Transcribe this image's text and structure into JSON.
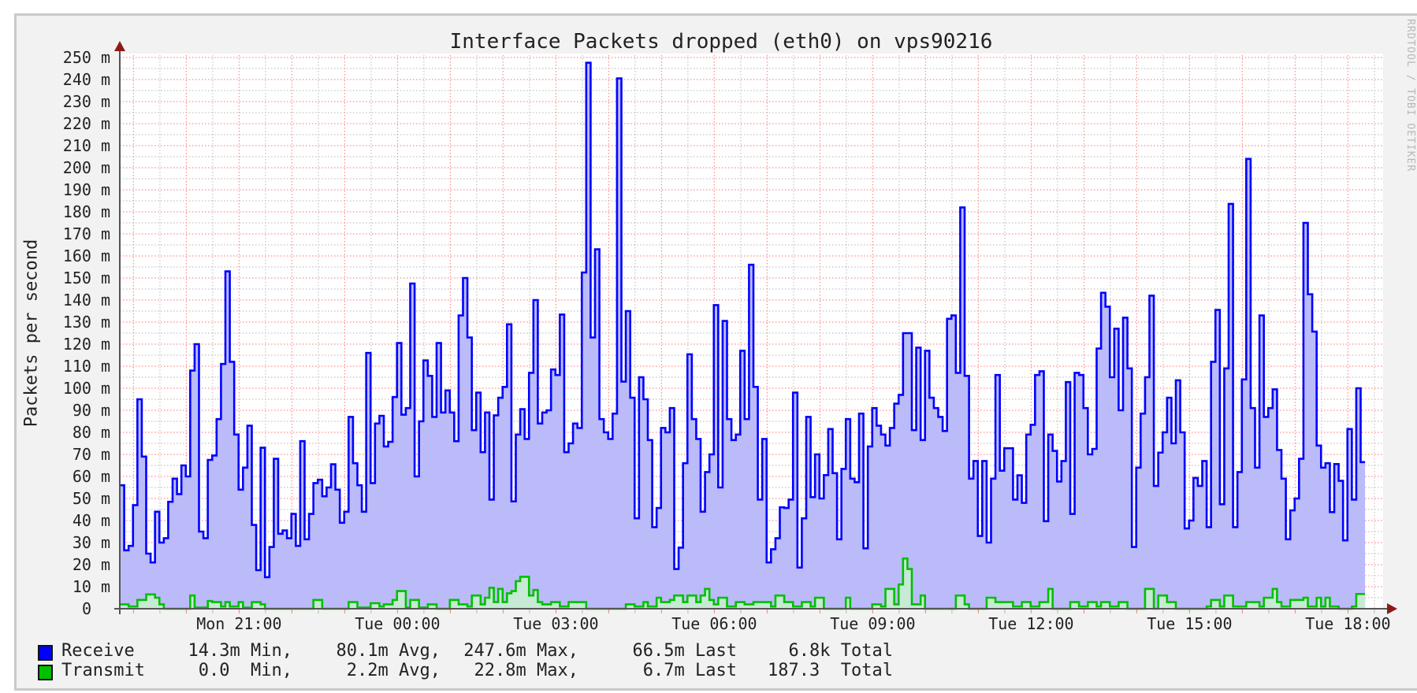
{
  "title": "Interface Packets dropped (eth0) on vps90216",
  "watermark": "RRDTOOL / TOBI OETIKER",
  "colors": {
    "panel_bg": "#f2f2f2",
    "plot_bg": "#ffffff",
    "major_grid": "#ff8c8c",
    "minor_grid": "#c4c4c4",
    "axis": "#555555",
    "arrow": "#8b1a1a",
    "receive_line": "#0000ff",
    "receive_fill": "#bbbbfa",
    "transmit_line": "#00c000",
    "transmit_fill": "#c6ead4"
  },
  "chart_data": {
    "type": "area",
    "title": "Interface Packets dropped (eth0) on vps90216",
    "ylabel": "Packets per second",
    "xlabel": "",
    "ylim": [
      0,
      250
    ],
    "y_unit_scale": "milli",
    "y_ticks": [
      0,
      10,
      20,
      30,
      40,
      50,
      60,
      70,
      80,
      90,
      100,
      110,
      120,
      130,
      140,
      150,
      160,
      170,
      180,
      190,
      200,
      210,
      220,
      230,
      240,
      250
    ],
    "y_tick_labels": [
      "0",
      "10 m",
      "20 m",
      "30 m",
      "40 m",
      "50 m",
      "60 m",
      "70 m",
      "80 m",
      "90 m",
      "100 m",
      "110 m",
      "120 m",
      "130 m",
      "140 m",
      "150 m",
      "160 m",
      "170 m",
      "180 m",
      "190 m",
      "200 m",
      "210 m",
      "220 m",
      "230 m",
      "240 m",
      "250 m"
    ],
    "x_tick_labels": [
      "Mon 21:00",
      "Tue 00:00",
      "Tue 03:00",
      "Tue 06:00",
      "Tue 09:00",
      "Tue 12:00",
      "Tue 15:00",
      "Tue 18:00"
    ],
    "x_label_every_hours": 3,
    "first_label_offset_hours": 2.26,
    "step_minutes": 5,
    "grid": true,
    "legend_position": "bottom-left",
    "series": [
      {
        "name": "Receive",
        "values": [
          56,
          26.5,
          28.5,
          47,
          95,
          69,
          25,
          21,
          44,
          30,
          32,
          48.5,
          59,
          52,
          65,
          60,
          108,
          120,
          35,
          32,
          67.5,
          69.5,
          86,
          111,
          153,
          112,
          79,
          54,
          64,
          83,
          38,
          17.5,
          73,
          14.3,
          28,
          68,
          34,
          35.5,
          32,
          43,
          28.5,
          76,
          31.5,
          43,
          57,
          58.5,
          51,
          55,
          65.5,
          54,
          39,
          44,
          87,
          66,
          56,
          44,
          116,
          57,
          84,
          87.5,
          73.6,
          75.7,
          96,
          120.5,
          88,
          91,
          147.5,
          60,
          85,
          112.6,
          105.6,
          87,
          120.5,
          89,
          99,
          89,
          76,
          133,
          150,
          123,
          81,
          98,
          71,
          89,
          49.5,
          87.7,
          95.7,
          100.6,
          129,
          48.7,
          79,
          90.5,
          77,
          107,
          140,
          84,
          89,
          90,
          108.5,
          106,
          133.4,
          71,
          75,
          84,
          82,
          152.5,
          247.6,
          123,
          163,
          86,
          80,
          77,
          88.5,
          240.5,
          103,
          135,
          95.7,
          41,
          105,
          95,
          76.5,
          37,
          45.7,
          82,
          80,
          91,
          18,
          27.7,
          66,
          115.4,
          86,
          77,
          44,
          62,
          70,
          137.7,
          55,
          130.5,
          86,
          76.5,
          79,
          117,
          86,
          156,
          100.6,
          49.5,
          77,
          21,
          27,
          32,
          46,
          45.7,
          49.5,
          98,
          18.7,
          41,
          87,
          50.6,
          70,
          50,
          60.6,
          81.5,
          61.5,
          31.5,
          63.4,
          86,
          59,
          57.4,
          88.5,
          27.4,
          73.6,
          91,
          83,
          79,
          74,
          82,
          93,
          97,
          125,
          125,
          81,
          118.4,
          76.5,
          117,
          95.7,
          91,
          87,
          80.6,
          131.5,
          133,
          107,
          182,
          105.6,
          59,
          67,
          33,
          67,
          30,
          59,
          106,
          62.6,
          72.8,
          72.8,
          49.5,
          60.5,
          48,
          79,
          83.4,
          106,
          107.7,
          39.7,
          79,
          71.6,
          57.7,
          67,
          102.8,
          43,
          107,
          106,
          91,
          70,
          72.5,
          118,
          143.3,
          137,
          105,
          127,
          90,
          132,
          109,
          28,
          64,
          88.5,
          105,
          142,
          55.7,
          70.8,
          80,
          95.7,
          75,
          103.6,
          80,
          36.4,
          40,
          59.3,
          55.7,
          67,
          37,
          112,
          135.5,
          47.4,
          109,
          183.6,
          37,
          62,
          104,
          204,
          91,
          64,
          133,
          87,
          91,
          99.5,
          72,
          59,
          31.5,
          44.6,
          50,
          68,
          175,
          142.6,
          125.7,
          74,
          64,
          66,
          43.8,
          65.6,
          58,
          31,
          81.5,
          49.5,
          100,
          66.5
        ]
      },
      {
        "name": "Transmit",
        "values": [
          2,
          2,
          1,
          1,
          4,
          4,
          6.5,
          6.5,
          5,
          2,
          0,
          0,
          0,
          0,
          0,
          0,
          6,
          0.5,
          0.5,
          0.5,
          3.5,
          3,
          3,
          1,
          3,
          1,
          1,
          3,
          0.5,
          0.5,
          3,
          3,
          2,
          0,
          0,
          0,
          0,
          0,
          0,
          0,
          0,
          0,
          0,
          0,
          4,
          4,
          0,
          0,
          0,
          0,
          0,
          0,
          3,
          3,
          0.5,
          0.5,
          0.5,
          2.5,
          2.5,
          1,
          2,
          2,
          4,
          8,
          8,
          0.5,
          4,
          4,
          0.5,
          0.5,
          2,
          2,
          0,
          0,
          0,
          4,
          4,
          2,
          2,
          1,
          6,
          6,
          2,
          5,
          9.5,
          3,
          9,
          3,
          7,
          8,
          12.5,
          14.5,
          14.5,
          6,
          8.5,
          3,
          2,
          2,
          3,
          3,
          1,
          1,
          3,
          3,
          3,
          3,
          0,
          0,
          0,
          0,
          0,
          0,
          0,
          0,
          0,
          2,
          2,
          1,
          1,
          3,
          1,
          1,
          5,
          3,
          3,
          4,
          6,
          6,
          3,
          6,
          6,
          3,
          6,
          9,
          4,
          2,
          5,
          5,
          1,
          1,
          3,
          3,
          2,
          2,
          3,
          3,
          3,
          3,
          1,
          6,
          6,
          3,
          3,
          1,
          1,
          3,
          3,
          1,
          5,
          5,
          0,
          0,
          0,
          0,
          0,
          5,
          0,
          0,
          0,
          0,
          0,
          2,
          2,
          1,
          9,
          9,
          2,
          11,
          22.8,
          18,
          2,
          2,
          6,
          0,
          0,
          0,
          0,
          0,
          0,
          0,
          6,
          6,
          2,
          0,
          0,
          0,
          0,
          5,
          5,
          3,
          3,
          3,
          3,
          1,
          1,
          3,
          3,
          1,
          1,
          3,
          3,
          9,
          0,
          0,
          0,
          0,
          3,
          3,
          1,
          1,
          3,
          3,
          1,
          3,
          3,
          1,
          1,
          3,
          3,
          0,
          0,
          0,
          0,
          9,
          9,
          0,
          6,
          6,
          3,
          3,
          0,
          0,
          0,
          0,
          0,
          0,
          0,
          1,
          4,
          4,
          1,
          6,
          6,
          1,
          1,
          1,
          3,
          3,
          3,
          1,
          5,
          5,
          9,
          3,
          1,
          1,
          4,
          4,
          4,
          5,
          1,
          1,
          5,
          1,
          5,
          1,
          1,
          0,
          0,
          0,
          1,
          6.7,
          6.7
        ]
      }
    ],
    "legend": [
      {
        "name": "Receive",
        "min": {
          "num": "14.3",
          "unit": "m",
          "label": "Min,"
        },
        "avg": {
          "num": "80.1",
          "unit": "m",
          "label": "Avg,"
        },
        "max": {
          "num": "247.6",
          "unit": "m",
          "label": "Max,"
        },
        "last": {
          "num": "66.5",
          "unit": "m",
          "label": "Last"
        },
        "total": {
          "num": "6.8",
          "unit": "k",
          "label": "Total"
        }
      },
      {
        "name": "Transmit",
        "min": {
          "num": "0.0",
          "unit": "",
          "label": "Min,"
        },
        "avg": {
          "num": "2.2",
          "unit": "m",
          "label": "Avg,"
        },
        "max": {
          "num": "22.8",
          "unit": "m",
          "label": "Max,"
        },
        "last": {
          "num": "6.7",
          "unit": "m",
          "label": "Last"
        },
        "total": {
          "num": "187.3",
          "unit": "",
          "label": "Total"
        }
      }
    ]
  }
}
